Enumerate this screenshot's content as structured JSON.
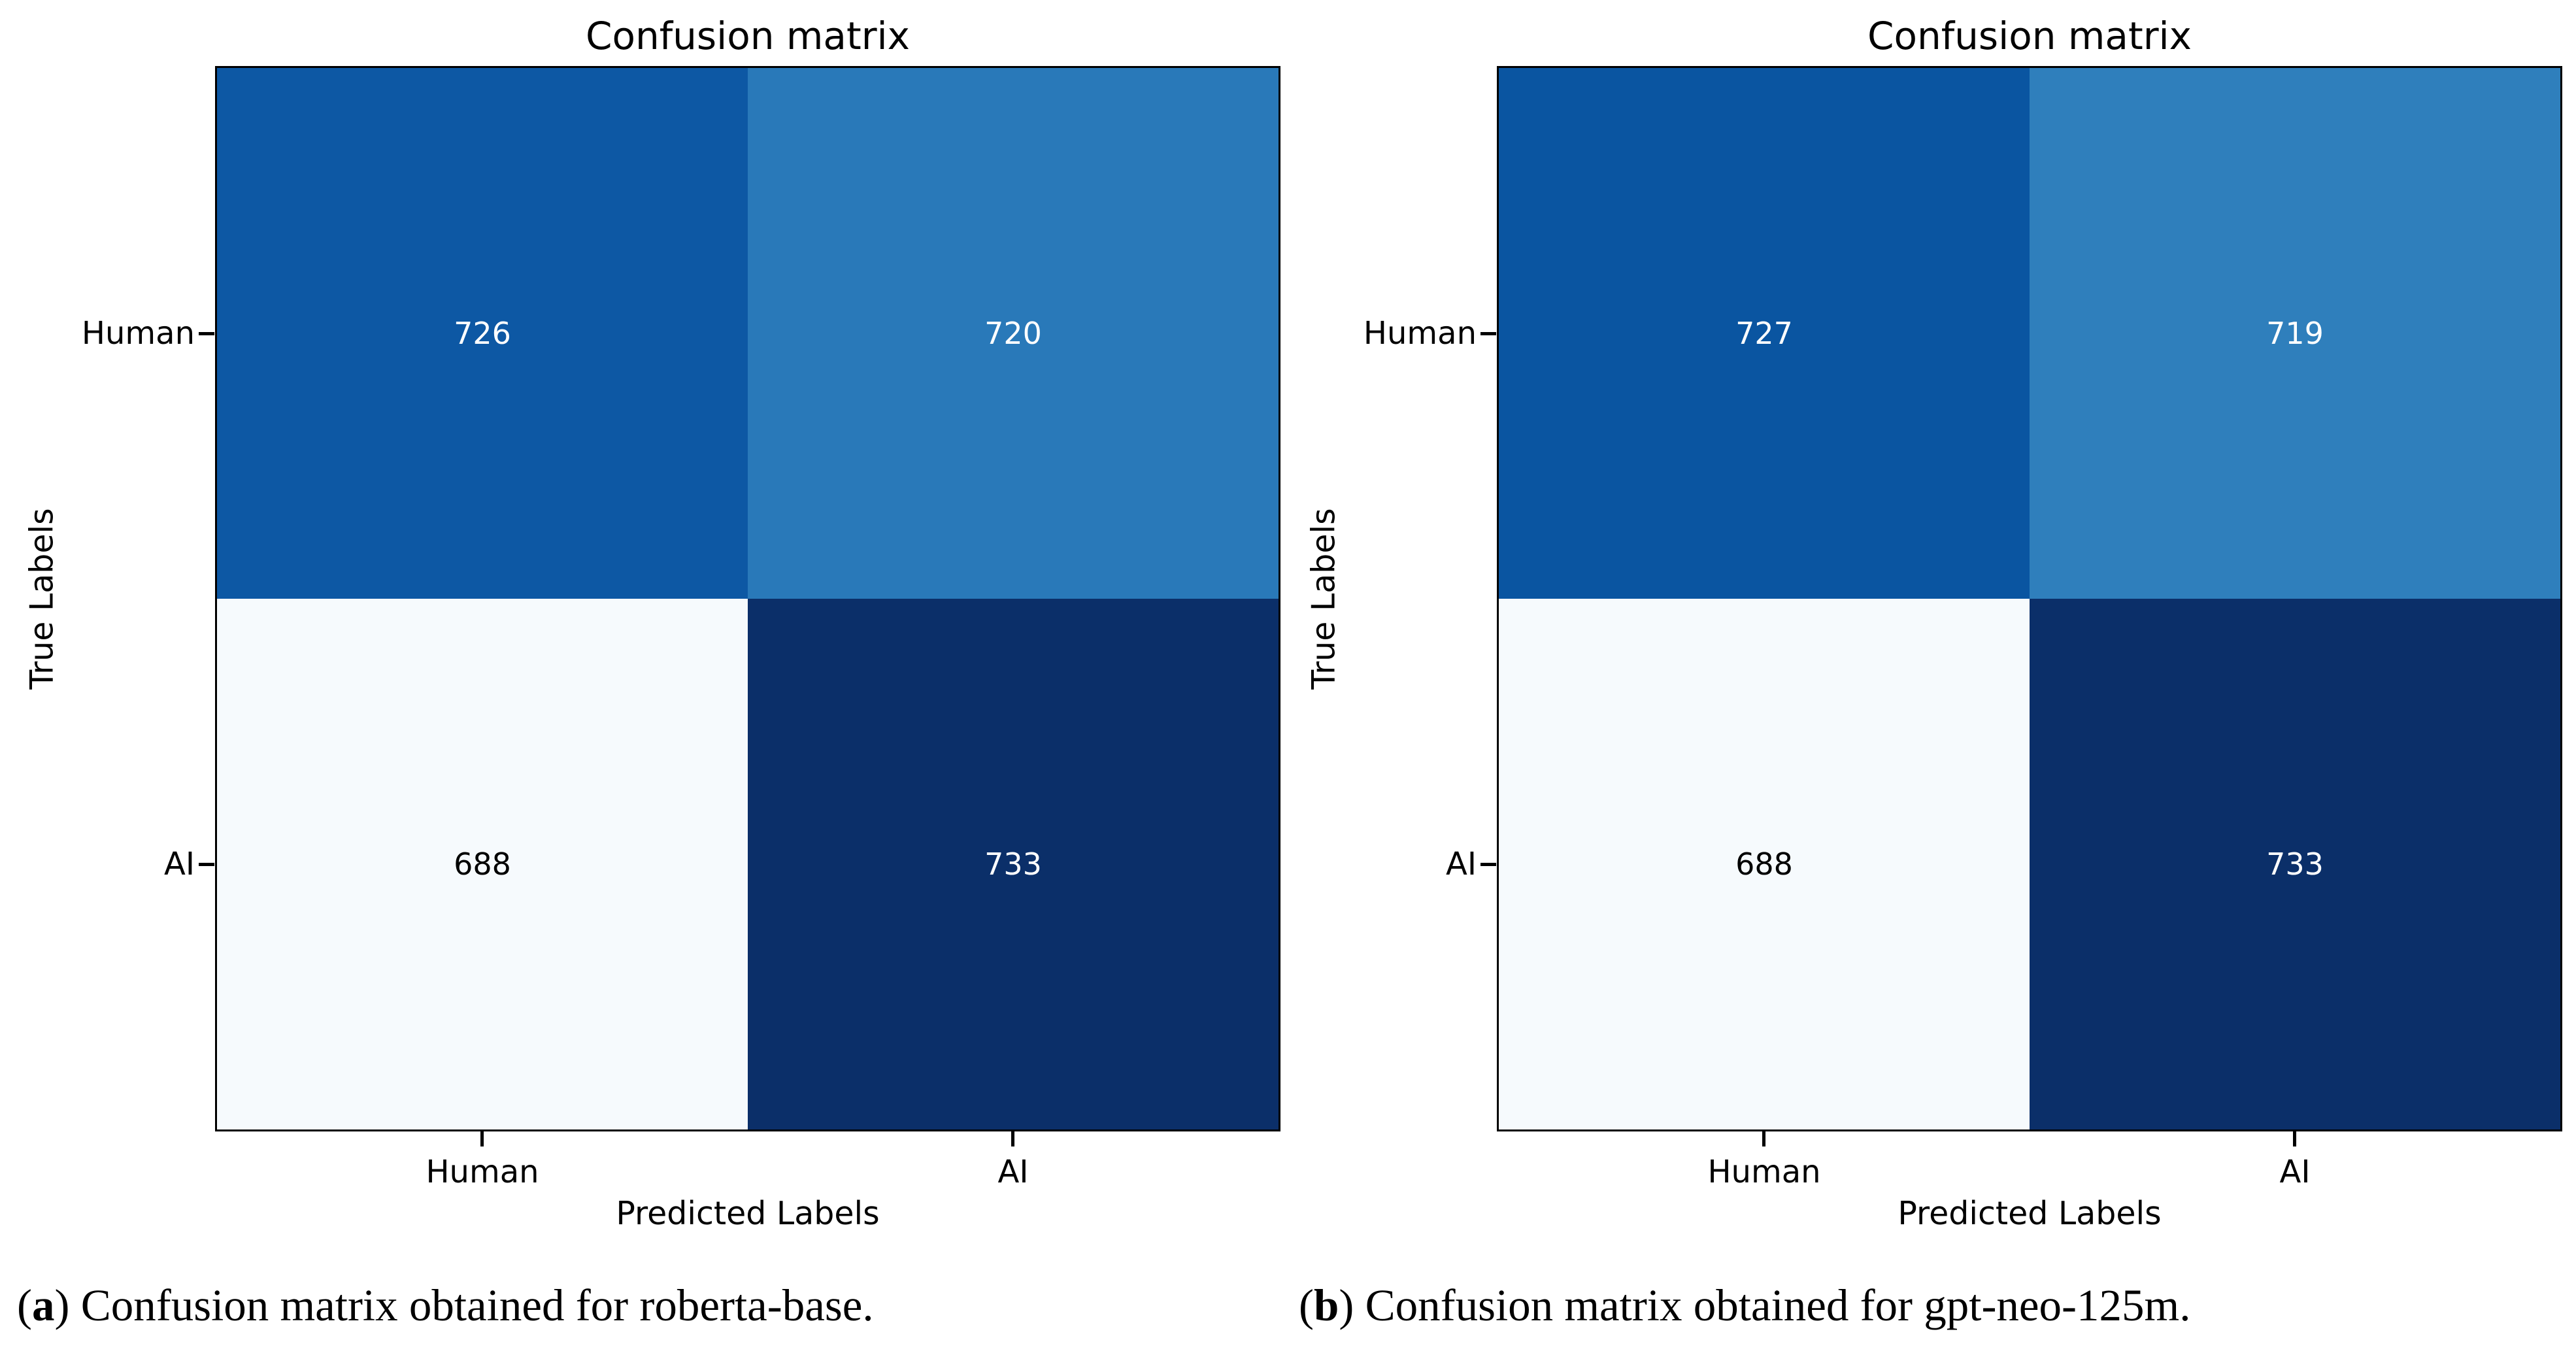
{
  "page": {
    "background": "#ffffff"
  },
  "chart_data": [
    {
      "type": "heatmap",
      "title": "Confusion matrix",
      "xlabel": "Predicted Labels",
      "ylabel": "True Labels",
      "x_tick_labels": [
        "Human",
        "AI"
      ],
      "y_tick_labels": [
        "Human",
        "AI"
      ],
      "colormap_hint": "Blues",
      "rows": [
        {
          "cells": [
            {
              "value": "726",
              "bg": "#0d58a4",
              "fg": "#ffffff"
            },
            {
              "value": "720",
              "bg": "#2979b9",
              "fg": "#ffffff"
            }
          ]
        },
        {
          "cells": [
            {
              "value": "688",
              "bg": "#f6fafd",
              "fg": "#000000"
            },
            {
              "value": "733",
              "bg": "#0b2f69",
              "fg": "#ffffff"
            }
          ]
        }
      ],
      "caption": {
        "open": "(",
        "letter": "a",
        "close": ") ",
        "text": "Confusion matrix obtained for roberta-base."
      }
    },
    {
      "type": "heatmap",
      "title": "Confusion matrix",
      "xlabel": "Predicted Labels",
      "ylabel": "True Labels",
      "x_tick_labels": [
        "Human",
        "AI"
      ],
      "y_tick_labels": [
        "Human",
        "AI"
      ],
      "colormap_hint": "Blues",
      "rows": [
        {
          "cells": [
            {
              "value": "727",
              "bg": "#0a55a1",
              "fg": "#ffffff"
            },
            {
              "value": "719",
              "bg": "#2f7fbc",
              "fg": "#ffffff"
            }
          ]
        },
        {
          "cells": [
            {
              "value": "688",
              "bg": "#f6fafd",
              "fg": "#000000"
            },
            {
              "value": "733",
              "bg": "#0b2f69",
              "fg": "#ffffff"
            }
          ]
        }
      ],
      "caption": {
        "open": "(",
        "letter": "b",
        "close": ") ",
        "text": "Confusion matrix obtained for gpt-neo-125m."
      }
    }
  ]
}
